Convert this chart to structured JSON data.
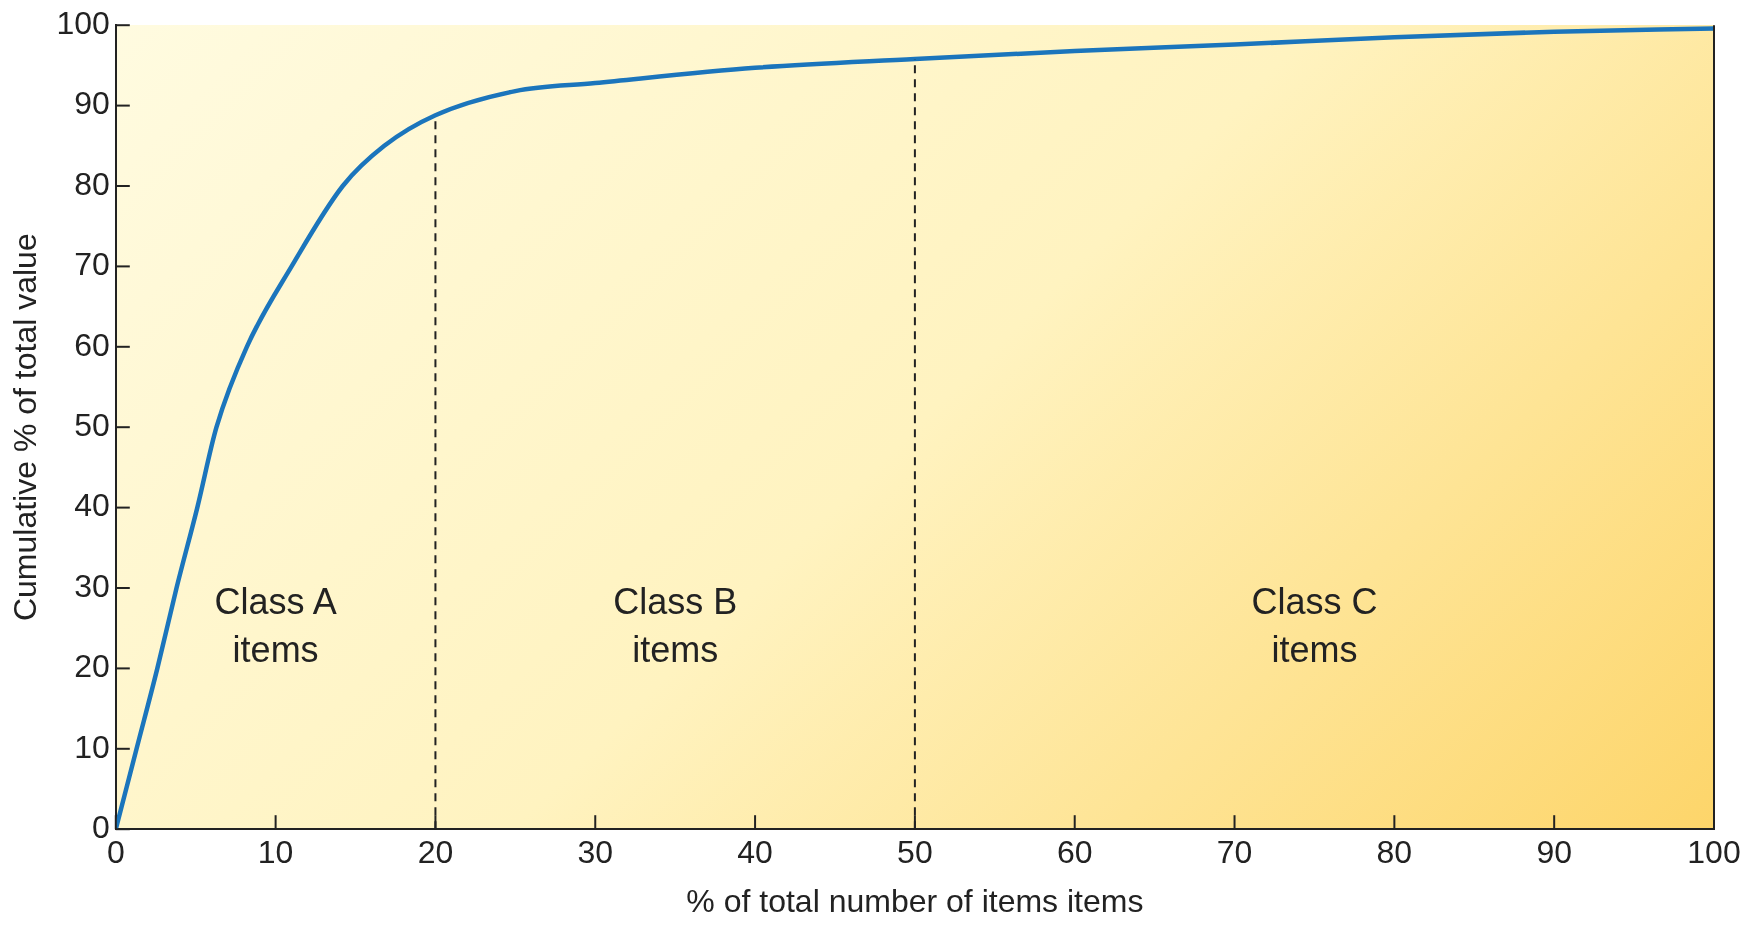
{
  "chart_data": {
    "type": "line",
    "xlabel": "% of total number of items items",
    "ylabel": "Cumulative % of total value",
    "series": [
      {
        "color": "#1b75bc",
        "x": [
          0,
          1.3,
          2.6,
          3.8,
          5.1,
          6.3,
          8.2,
          11,
          14.2,
          16.8,
          20,
          25,
          30,
          40,
          50,
          60,
          70,
          80,
          90,
          100
        ],
        "values": [
          0,
          10,
          20,
          30,
          40,
          50,
          60,
          70,
          80,
          85,
          88.8,
          91.8,
          92.8,
          94.7,
          95.8,
          96.8,
          97.6,
          98.5,
          99.2,
          99.6
        ]
      }
    ],
    "xlim": [
      0,
      100
    ],
    "xticks": [
      0,
      10,
      20,
      30,
      40,
      50,
      60,
      70,
      80,
      90,
      100
    ],
    "ylim": [
      0,
      100
    ],
    "yticks": [
      0,
      10,
      20,
      30,
      40,
      50,
      60,
      70,
      80,
      90,
      100
    ],
    "ref_lines": [
      {
        "axis": "x",
        "value": 20,
        "line_style": "dashed",
        "color": "#222222"
      },
      {
        "axis": "x",
        "value": 50,
        "line_style": "dashed",
        "color": "#222222"
      }
    ],
    "annotations": [
      "Class A items",
      "Class B items",
      "Class C items"
    ],
    "grid": false,
    "legend": false,
    "marker": "none",
    "line_style": "solid"
  }
}
